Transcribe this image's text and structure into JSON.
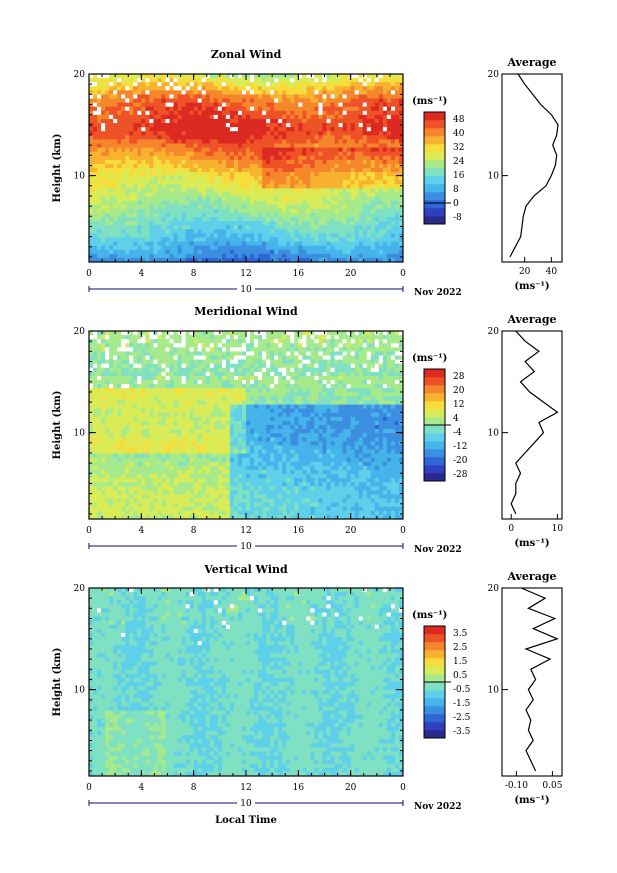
{
  "colors": {
    "colormap": [
      "#2a2a8c",
      "#2f3fc0",
      "#2f66d6",
      "#3c8fe0",
      "#45b4ea",
      "#5fd0ea",
      "#7fe0c2",
      "#a6ea8c",
      "#d9ec57",
      "#f6dd3b",
      "#f8b22f",
      "#f5862b",
      "#ee5226",
      "#dc2a22"
    ]
  },
  "common": {
    "date_label": "Nov 2022",
    "day_label": "10",
    "xlabel": "Local Time",
    "units": "(ms⁻¹)",
    "avg_title": "Average",
    "ylabel": "Height (km)"
  },
  "chart_data": [
    {
      "type": "heatmap",
      "title": "Zonal Wind",
      "xlabel": "",
      "ylabel": "Height (km)",
      "x_ticks": [
        "0",
        "4",
        "8",
        "12",
        "16",
        "20",
        "0"
      ],
      "y_ticks": [
        "20",
        "10"
      ],
      "xlim": [
        0,
        24
      ],
      "ylim": [
        1.5,
        20
      ],
      "colorbar": {
        "units": "(ms⁻¹)",
        "ticks": [
          "48",
          "40",
          "32",
          "24",
          "16",
          "8",
          "0",
          "-8"
        ],
        "range": [
          -12,
          52
        ]
      },
      "profile_heights": [
        20,
        19,
        18,
        17,
        16,
        15,
        14,
        13,
        12,
        11,
        10,
        9,
        8,
        7,
        6,
        5,
        4,
        3,
        2
      ],
      "profile": {
        "title": "Average",
        "xlabel": "(ms⁻¹)",
        "x_ticks": [
          "20",
          "40"
        ],
        "xlim": [
          3,
          48
        ],
        "values": [
          15,
          20,
          26,
          32,
          40,
          45,
          44,
          41,
          44,
          43,
          40,
          36,
          27,
          21,
          19,
          18,
          17,
          13,
          9
        ]
      }
    },
    {
      "type": "heatmap",
      "title": "Meridional Wind",
      "xlabel": "",
      "ylabel": "Height (km)",
      "x_ticks": [
        "0",
        "4",
        "8",
        "12",
        "16",
        "20",
        "0"
      ],
      "y_ticks": [
        "20",
        "10"
      ],
      "xlim": [
        0,
        24
      ],
      "ylim": [
        1.5,
        20
      ],
      "colorbar": {
        "units": "(ms⁻¹)",
        "ticks": [
          "28",
          "20",
          "12",
          "4",
          "-4",
          "-12",
          "-20",
          "-28"
        ],
        "range": [
          -32,
          32
        ]
      },
      "profile_heights": [
        20,
        19,
        18,
        17,
        16,
        15,
        14,
        13,
        12,
        11,
        10,
        9,
        8,
        7,
        6,
        5,
        4,
        3,
        2
      ],
      "profile": {
        "title": "Average",
        "xlabel": "(ms⁻¹)",
        "x_ticks": [
          "0",
          "10"
        ],
        "xlim": [
          -2,
          11
        ],
        "values": [
          1,
          3,
          6,
          3,
          5,
          2,
          4,
          7,
          10,
          6,
          7,
          5,
          3,
          1,
          2,
          1,
          1,
          0,
          1
        ]
      }
    },
    {
      "type": "heatmap",
      "title": "Vertical Wind",
      "xlabel": "Local Time",
      "ylabel": "Height (km)",
      "x_ticks": [
        "0",
        "4",
        "8",
        "12",
        "16",
        "20",
        "0"
      ],
      "y_ticks": [
        "20",
        "10"
      ],
      "xlim": [
        0,
        24
      ],
      "ylim": [
        1.5,
        20
      ],
      "colorbar": {
        "units": "(ms⁻¹)",
        "ticks": [
          "3.5",
          "2.5",
          "1.5",
          "0.5",
          "-0.5",
          "-1.5",
          "-2.5",
          "-3.5"
        ],
        "range": [
          -4,
          4
        ]
      },
      "profile_heights": [
        20,
        19,
        18,
        17,
        16,
        15,
        14,
        13,
        12,
        11,
        10,
        9,
        8,
        7,
        6,
        5,
        4,
        3,
        2
      ],
      "profile": {
        "title": "Average",
        "xlabel": "(ms⁻¹)",
        "x_ticks": [
          "-0.10",
          "0.05"
        ],
        "xlim": [
          -0.16,
          0.09
        ],
        "values": [
          -0.08,
          0.02,
          -0.05,
          0.06,
          -0.03,
          0.07,
          -0.06,
          0.04,
          -0.04,
          -0.02,
          -0.05,
          -0.03,
          -0.06,
          -0.04,
          -0.05,
          -0.03,
          -0.06,
          -0.04,
          -0.02
        ]
      }
    }
  ]
}
